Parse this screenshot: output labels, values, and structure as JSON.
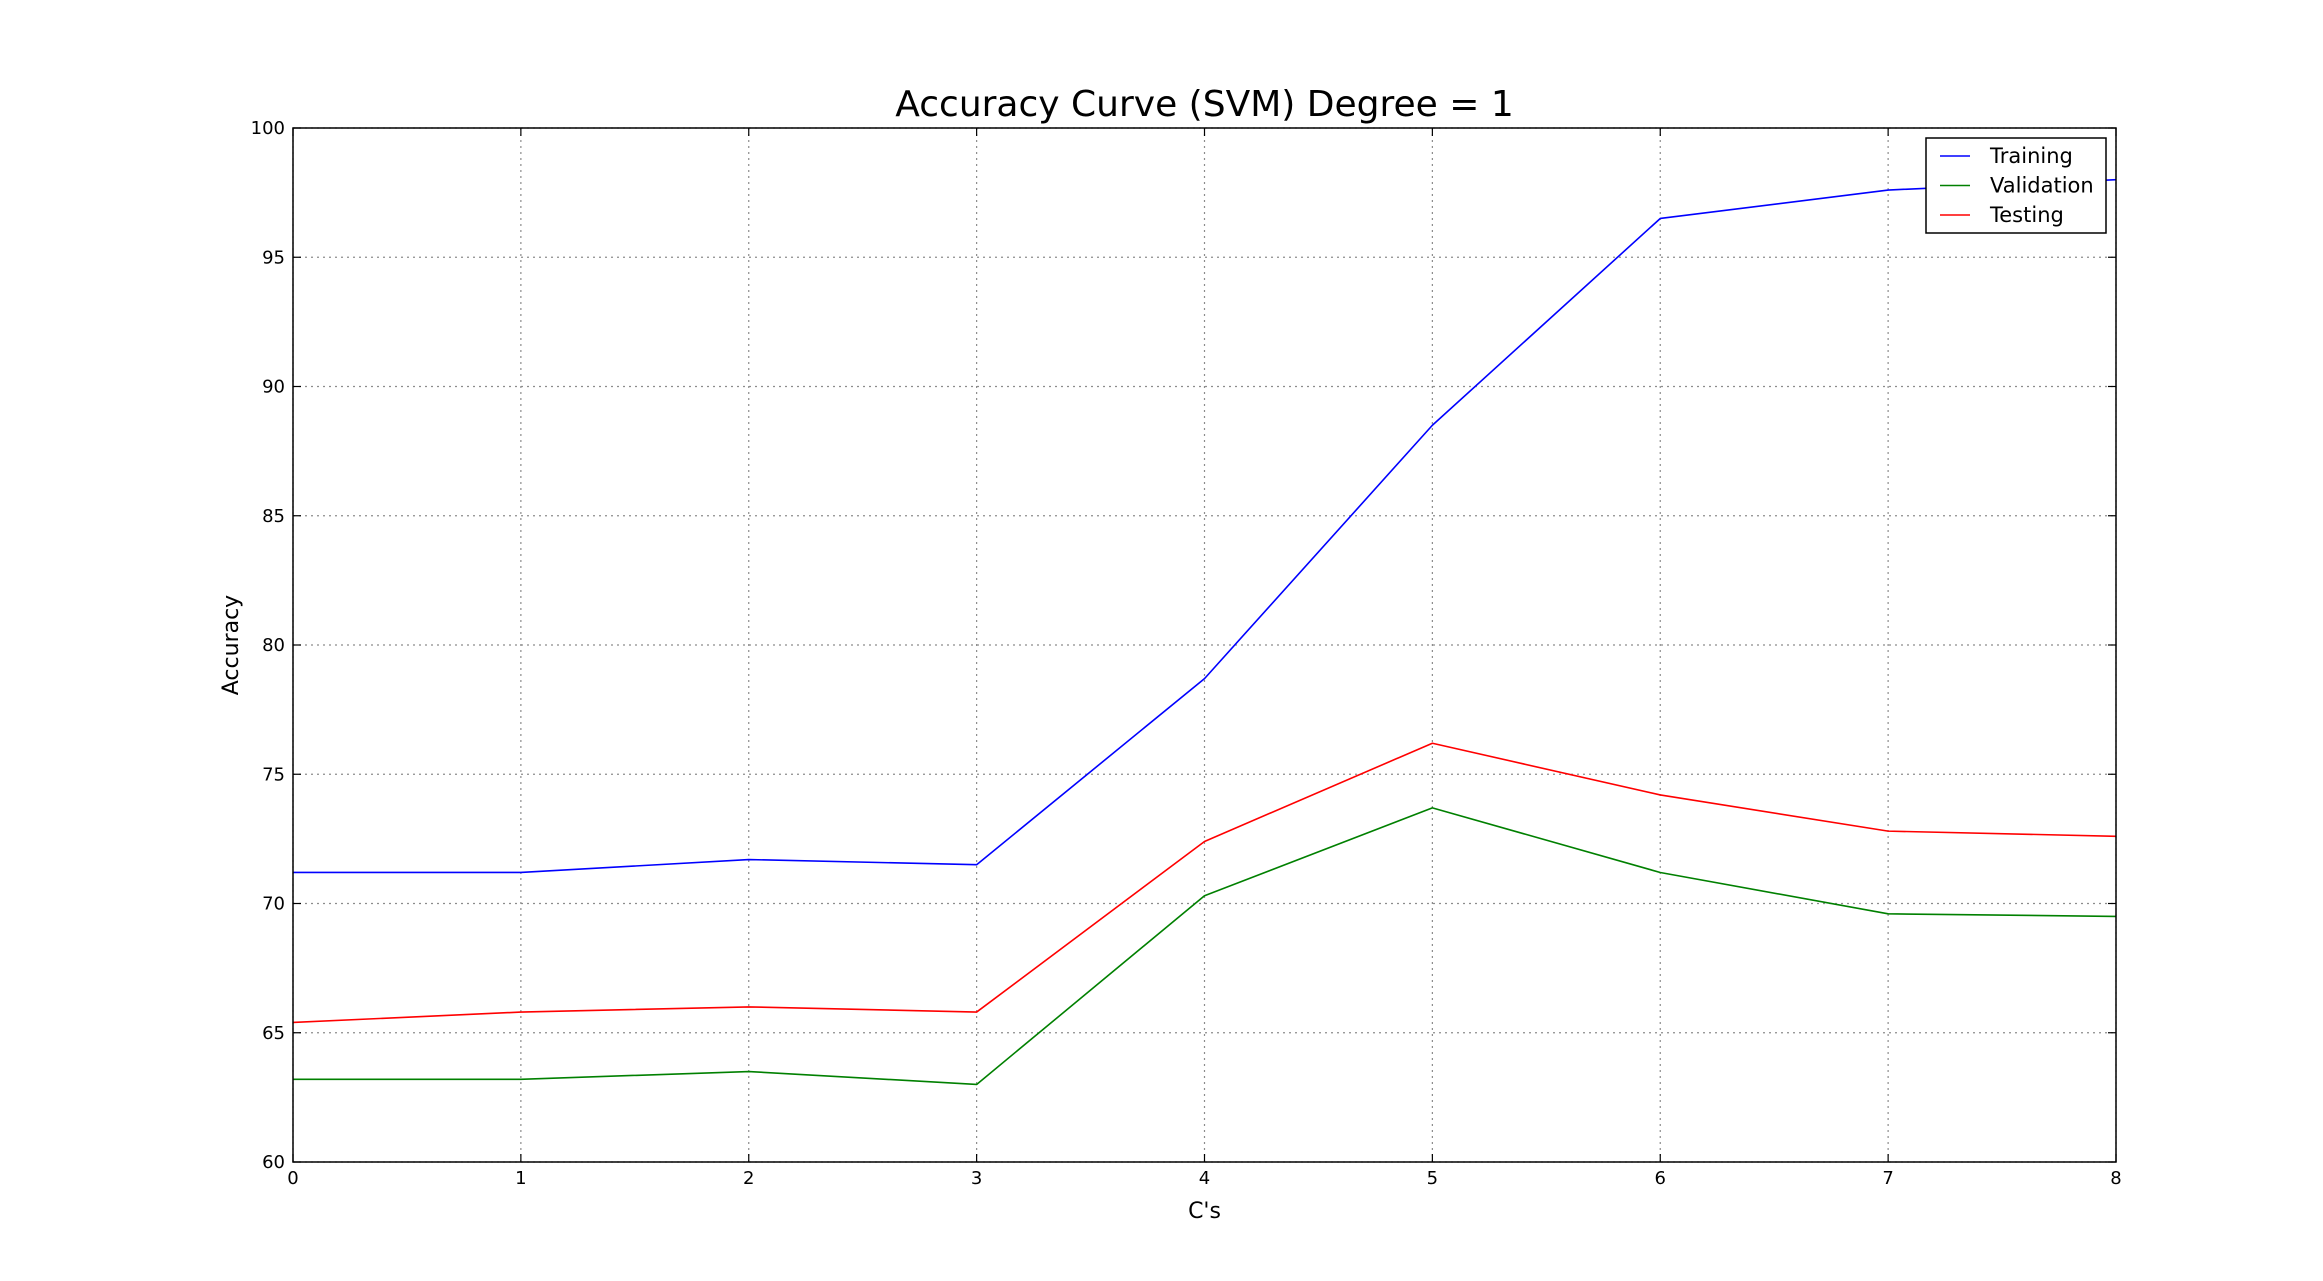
{
  "chart_data": {
    "type": "line",
    "title": "Accuracy Curve (SVM) Degree = 1",
    "xlabel": "C's",
    "ylabel": "Accuracy",
    "x": [
      0,
      1,
      2,
      3,
      4,
      5,
      6,
      7,
      8
    ],
    "xlim": [
      0,
      8
    ],
    "ylim": [
      60,
      100
    ],
    "xticks": [
      "0",
      "1",
      "2",
      "3",
      "4",
      "5",
      "6",
      "7",
      "8"
    ],
    "yticks": [
      "60",
      "65",
      "70",
      "75",
      "80",
      "85",
      "90",
      "95",
      "100"
    ],
    "grid": true,
    "legend_position": "top-right",
    "series": [
      {
        "name": "Training",
        "color": "#0000ff",
        "values": [
          71.2,
          71.2,
          71.7,
          71.5,
          78.7,
          88.5,
          96.5,
          97.6,
          98.0
        ]
      },
      {
        "name": " Validation",
        "color": "#008000",
        "values": [
          63.2,
          63.2,
          63.5,
          63.0,
          70.3,
          73.7,
          71.2,
          69.6,
          69.5
        ]
      },
      {
        "name": "Testing",
        "color": "#ff0000",
        "values": [
          65.4,
          65.8,
          66.0,
          65.8,
          72.4,
          76.2,
          74.2,
          72.8,
          72.6
        ]
      }
    ]
  }
}
